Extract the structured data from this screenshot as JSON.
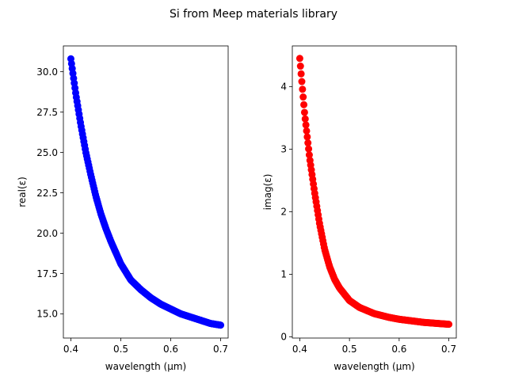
{
  "figure": {
    "title": "Si from Meep materials library"
  },
  "chart_data": [
    {
      "type": "scatter",
      "title": "",
      "xlabel": "wavelength (μm)",
      "ylabel": "real(ε)",
      "xlim": [
        0.385,
        0.715
      ],
      "ylim": [
        13.5,
        31.6
      ],
      "xticks": [
        0.4,
        0.5,
        0.6,
        0.7
      ],
      "xtick_labels": [
        "0.4",
        "0.5",
        "0.6",
        "0.7"
      ],
      "yticks": [
        15.0,
        17.5,
        20.0,
        22.5,
        25.0,
        27.5,
        30.0
      ],
      "ytick_labels": [
        "15.0",
        "17.5",
        "20.0",
        "22.5",
        "25.0",
        "27.5",
        "30.0"
      ],
      "grid": false,
      "color": "#0000ff",
      "series": [
        {
          "x": [
            0.4,
            0.41,
            0.42,
            0.43,
            0.44,
            0.45,
            0.46,
            0.47,
            0.48,
            0.49,
            0.5,
            0.52,
            0.54,
            0.56,
            0.58,
            0.6,
            0.62,
            0.65,
            0.68,
            0.7
          ],
          "y": [
            30.8,
            28.6,
            26.7,
            25.0,
            23.6,
            22.3,
            21.2,
            20.3,
            19.5,
            18.8,
            18.1,
            17.1,
            16.5,
            16.0,
            15.6,
            15.3,
            15.0,
            14.7,
            14.4,
            14.3
          ]
        }
      ]
    },
    {
      "type": "scatter",
      "title": "",
      "xlabel": "wavelength (μm)",
      "ylabel": "imag(ε)",
      "xlim": [
        0.385,
        0.715
      ],
      "ylim": [
        -0.02,
        4.65
      ],
      "xticks": [
        0.4,
        0.5,
        0.6,
        0.7
      ],
      "xtick_labels": [
        "0.4",
        "0.5",
        "0.6",
        "0.7"
      ],
      "yticks": [
        0,
        1,
        2,
        3,
        4
      ],
      "ytick_labels": [
        "0",
        "1",
        "2",
        "3",
        "4"
      ],
      "grid": false,
      "color": "#ff0000",
      "series": [
        {
          "x": [
            0.4,
            0.405,
            0.41,
            0.415,
            0.42,
            0.43,
            0.44,
            0.45,
            0.46,
            0.47,
            0.48,
            0.5,
            0.52,
            0.55,
            0.58,
            0.6,
            0.65,
            0.7
          ],
          "y": [
            4.45,
            4.0,
            3.55,
            3.2,
            2.85,
            2.3,
            1.8,
            1.4,
            1.12,
            0.92,
            0.78,
            0.58,
            0.47,
            0.37,
            0.31,
            0.28,
            0.23,
            0.2
          ]
        }
      ]
    }
  ]
}
